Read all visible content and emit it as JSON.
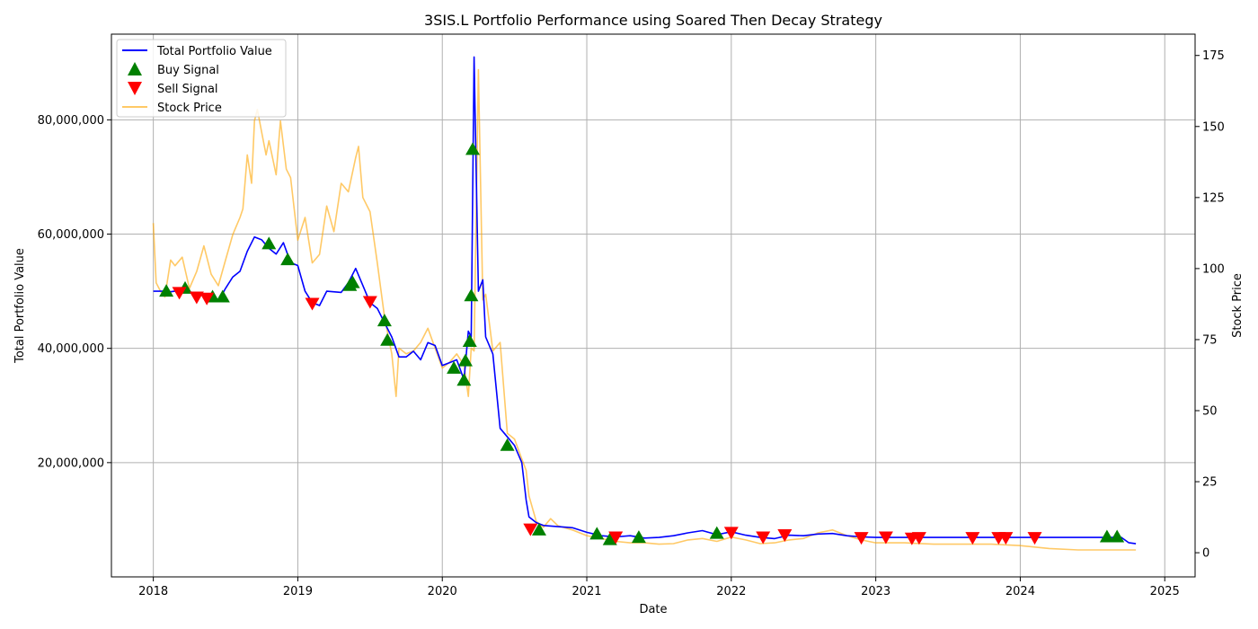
{
  "chart_data": {
    "type": "line",
    "title": "3SIS.L Portfolio Performance using Soared Then Decay Strategy",
    "xlabel": "Date",
    "ylabel": "Total Portfolio Value",
    "ylabel_right": "Stock Price",
    "x_domain": [
      2017.71,
      2025.21
    ],
    "x_ticks": [
      2018,
      2019,
      2020,
      2021,
      2022,
      2023,
      2024,
      2025
    ],
    "x_tick_labels": [
      "2018",
      "2019",
      "2020",
      "2021",
      "2022",
      "2023",
      "2024",
      "2025"
    ],
    "y_left_domain": [
      0,
      95000000
    ],
    "y_left_ticks": [
      20000000,
      40000000,
      60000000,
      80000000
    ],
    "y_left_tick_labels": [
      "20,000,000",
      "40,000,000",
      "60,000,000",
      "80,000,000"
    ],
    "y_right_domain": [
      -8.5,
      182.5
    ],
    "y_right_ticks": [
      0,
      25,
      50,
      75,
      100,
      125,
      150,
      175
    ],
    "y_right_tick_labels": [
      "0",
      "25",
      "50",
      "75",
      "100",
      "125",
      "150",
      "175"
    ],
    "grid": true,
    "legend_position": "top-left",
    "colors": {
      "portfolio": "#0000ff",
      "buy": "#008000",
      "sell": "#ff0000",
      "price": "#ffa500"
    },
    "series": [
      {
        "name": "Total Portfolio Value",
        "axis": "left",
        "x": [
          2018.0,
          2018.08,
          2018.12,
          2018.2,
          2018.3,
          2018.4,
          2018.45,
          2018.5,
          2018.55,
          2018.6,
          2018.65,
          2018.7,
          2018.75,
          2018.8,
          2018.85,
          2018.9,
          2018.95,
          2019.0,
          2019.05,
          2019.1,
          2019.15,
          2019.2,
          2019.3,
          2019.35,
          2019.4,
          2019.45,
          2019.5,
          2019.55,
          2019.6,
          2019.65,
          2019.7,
          2019.75,
          2019.8,
          2019.85,
          2019.9,
          2019.95,
          2020.0,
          2020.05,
          2020.1,
          2020.15,
          2020.18,
          2020.2,
          2020.22,
          2020.25,
          2020.28,
          2020.3,
          2020.35,
          2020.4,
          2020.45,
          2020.5,
          2020.55,
          2020.58,
          2020.6,
          2020.65,
          2020.7,
          2020.8,
          2020.9,
          2021.0,
          2021.1,
          2021.2,
          2021.3,
          2021.4,
          2021.5,
          2021.6,
          2021.7,
          2021.8,
          2021.9,
          2022.0,
          2022.1,
          2022.2,
          2022.3,
          2022.4,
          2022.5,
          2022.6,
          2022.7,
          2022.8,
          2022.9,
          2023.0,
          2023.5,
          2024.0,
          2024.5,
          2024.7,
          2024.75,
          2024.8
        ],
        "values": [
          50000000,
          50000000,
          49900000,
          50200000,
          49600000,
          48800000,
          48200000,
          50500000,
          52500000,
          53500000,
          57000000,
          59500000,
          59000000,
          57500000,
          56500000,
          58500000,
          55000000,
          54500000,
          50000000,
          48000000,
          47500000,
          50000000,
          49800000,
          51500000,
          54000000,
          51000000,
          48000000,
          47000000,
          44500000,
          42000000,
          38500000,
          38500000,
          39500000,
          38000000,
          41000000,
          40500000,
          37000000,
          37500000,
          38000000,
          34500000,
          43000000,
          42000000,
          91000000,
          50000000,
          52000000,
          42000000,
          39000000,
          26000000,
          24500000,
          23000000,
          20000000,
          13500000,
          10500000,
          9500000,
          9000000,
          8800000,
          8600000,
          7800000,
          7200000,
          7000000,
          7200000,
          6800000,
          6900000,
          7200000,
          7700000,
          8100000,
          7400000,
          7900000,
          7300000,
          6900000,
          6700000,
          7300000,
          7200000,
          7500000,
          7600000,
          7200000,
          7000000,
          6900000,
          6900000,
          6900000,
          6900000,
          6900000,
          6000000,
          5800000
        ]
      },
      {
        "name": "Stock Price",
        "axis": "right",
        "x": [
          2018.0,
          2018.02,
          2018.05,
          2018.08,
          2018.12,
          2018.15,
          2018.2,
          2018.25,
          2018.3,
          2018.35,
          2018.4,
          2018.45,
          2018.5,
          2018.55,
          2018.6,
          2018.62,
          2018.65,
          2018.68,
          2018.7,
          2018.72,
          2018.75,
          2018.78,
          2018.8,
          2018.85,
          2018.88,
          2018.92,
          2018.95,
          2019.0,
          2019.05,
          2019.1,
          2019.15,
          2019.2,
          2019.25,
          2019.3,
          2019.35,
          2019.4,
          2019.42,
          2019.45,
          2019.5,
          2019.55,
          2019.6,
          2019.65,
          2019.68,
          2019.7,
          2019.75,
          2019.8,
          2019.85,
          2019.9,
          2019.95,
          2020.0,
          2020.05,
          2020.1,
          2020.15,
          2020.18,
          2020.2,
          2020.22,
          2020.25,
          2020.28,
          2020.3,
          2020.35,
          2020.4,
          2020.45,
          2020.5,
          2020.55,
          2020.58,
          2020.6,
          2020.65,
          2020.7,
          2020.75,
          2020.8,
          2020.9,
          2021.0,
          2021.1,
          2021.2,
          2021.3,
          2021.4,
          2021.5,
          2021.6,
          2021.7,
          2021.8,
          2021.9,
          2022.0,
          2022.1,
          2022.2,
          2022.3,
          2022.4,
          2022.5,
          2022.6,
          2022.7,
          2022.8,
          2022.9,
          2023.0,
          2023.2,
          2023.4,
          2023.6,
          2023.8,
          2024.0,
          2024.2,
          2024.4,
          2024.6,
          2024.8
        ],
        "values": [
          116,
          95,
          92,
          90,
          103,
          101,
          104,
          93,
          99,
          108,
          98,
          94,
          103,
          112,
          118,
          121,
          140,
          130,
          152,
          156,
          148,
          140,
          145,
          133,
          152,
          135,
          132,
          110,
          118,
          102,
          105,
          122,
          113,
          130,
          127,
          139,
          143,
          125,
          120,
          102,
          83,
          70,
          55,
          72,
          70,
          71,
          74,
          79,
          72,
          65,
          67,
          70,
          66,
          55,
          72,
          71,
          170,
          89,
          91,
          71,
          74,
          42,
          40,
          33,
          29,
          20,
          11,
          9,
          12,
          9.5,
          8,
          6,
          5,
          4,
          3.5,
          3.5,
          3,
          3.2,
          4.5,
          5,
          4,
          5.5,
          4.5,
          3.2,
          3.5,
          4.5,
          5,
          7,
          8,
          6,
          4.5,
          3.5,
          3.5,
          3,
          3,
          3,
          2.5,
          1.5,
          1,
          1,
          1
        ]
      }
    ],
    "buy_signals": {
      "name": "Buy Signal",
      "x": [
        2018.09,
        2018.22,
        2018.41,
        2018.48,
        2018.8,
        2018.93,
        2019.36,
        2019.38,
        2019.6,
        2019.62,
        2020.08,
        2020.15,
        2020.16,
        2020.19,
        2020.2,
        2020.21,
        2020.45,
        2020.67,
        2021.07,
        2021.16,
        2021.36,
        2021.9,
        2024.6,
        2024.67
      ],
      "values": [
        50000000,
        50500000,
        49000000,
        49000000,
        58300000,
        55500000,
        51000000,
        51500000,
        44800000,
        41400000,
        36500000,
        34400000,
        37800000,
        41200000,
        49200000,
        74800000,
        23000000,
        8200000,
        7500000,
        6500000,
        6900000,
        7600000,
        7000000,
        7000000
      ]
    },
    "sell_signals": {
      "name": "Sell Signal",
      "x": [
        2018.18,
        2018.3,
        2018.37,
        2019.1,
        2019.5,
        2020.61,
        2021.2,
        2022.0,
        2022.22,
        2022.37,
        2022.9,
        2023.07,
        2023.25,
        2023.3,
        2023.67,
        2023.85,
        2023.9,
        2024.1
      ],
      "values": [
        49800000,
        49000000,
        48800000,
        47900000,
        48200000,
        8400000,
        7000000,
        7800000,
        7000000,
        7400000,
        6900000,
        7000000,
        6800000,
        6900000,
        6900000,
        6900000,
        6900000,
        6900000
      ]
    }
  }
}
